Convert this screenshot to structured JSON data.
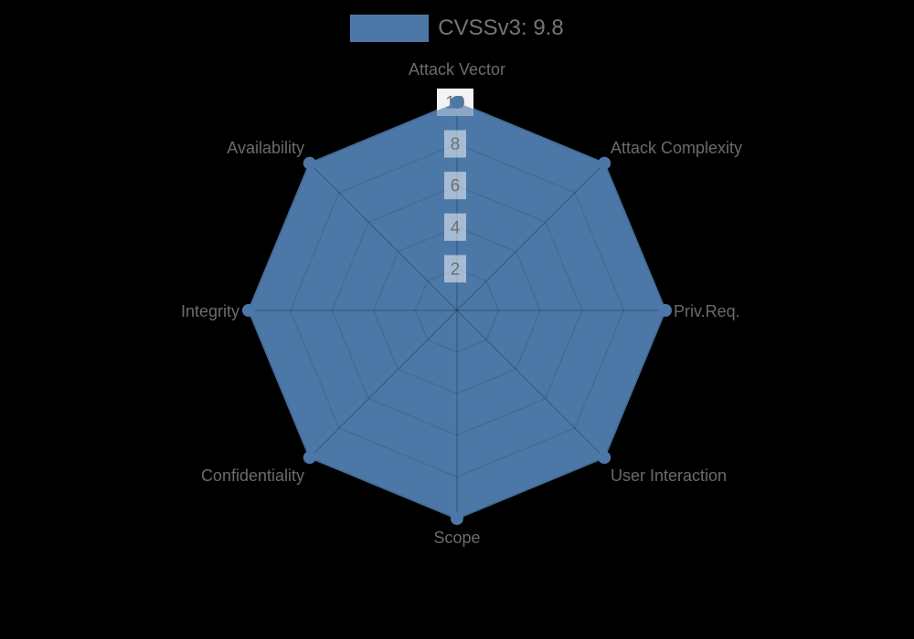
{
  "legend": {
    "label": "CVSSv3: 9.8",
    "swatch_color": "#4c78a8",
    "position": "top-center"
  },
  "chart_data": {
    "type": "radar",
    "title": "",
    "categories": [
      "Attack Vector",
      "Attack Complexity",
      "Priv.Req.",
      "User Interaction",
      "Scope",
      "Confidentiality",
      "Integrity",
      "Availability"
    ],
    "series": [
      {
        "name": "CVSSv3: 9.8",
        "values": [
          10,
          10,
          10,
          10,
          10,
          10,
          10,
          10
        ],
        "color": "#4c78a8"
      }
    ],
    "radial_axis": {
      "range": [
        0,
        10
      ],
      "ticks": [
        2,
        4,
        6,
        8,
        10
      ],
      "tick_labels": [
        "2",
        "4",
        "6",
        "8",
        "10"
      ]
    },
    "grid": true,
    "grid_shape": "polygon",
    "legend_position": "top",
    "style": {
      "background": "#000000",
      "fill_color": "#4c78a8",
      "stroke_color": "#4c78a8",
      "marker_color": "#4c78a8",
      "ring_line": "rgba(0,0,0,0.10)",
      "spoke_line": "rgba(0,0,0,0.20)",
      "tick_bg": "rgba(255,255,255,0.5)",
      "tick_bg_outer": "#f3f3f3",
      "tick_text": "#6f6f6f",
      "label_text": "#6b6b6b",
      "legend_text": "#757575",
      "overlay_fill": "rgba(76,120,168,0.62)"
    }
  }
}
